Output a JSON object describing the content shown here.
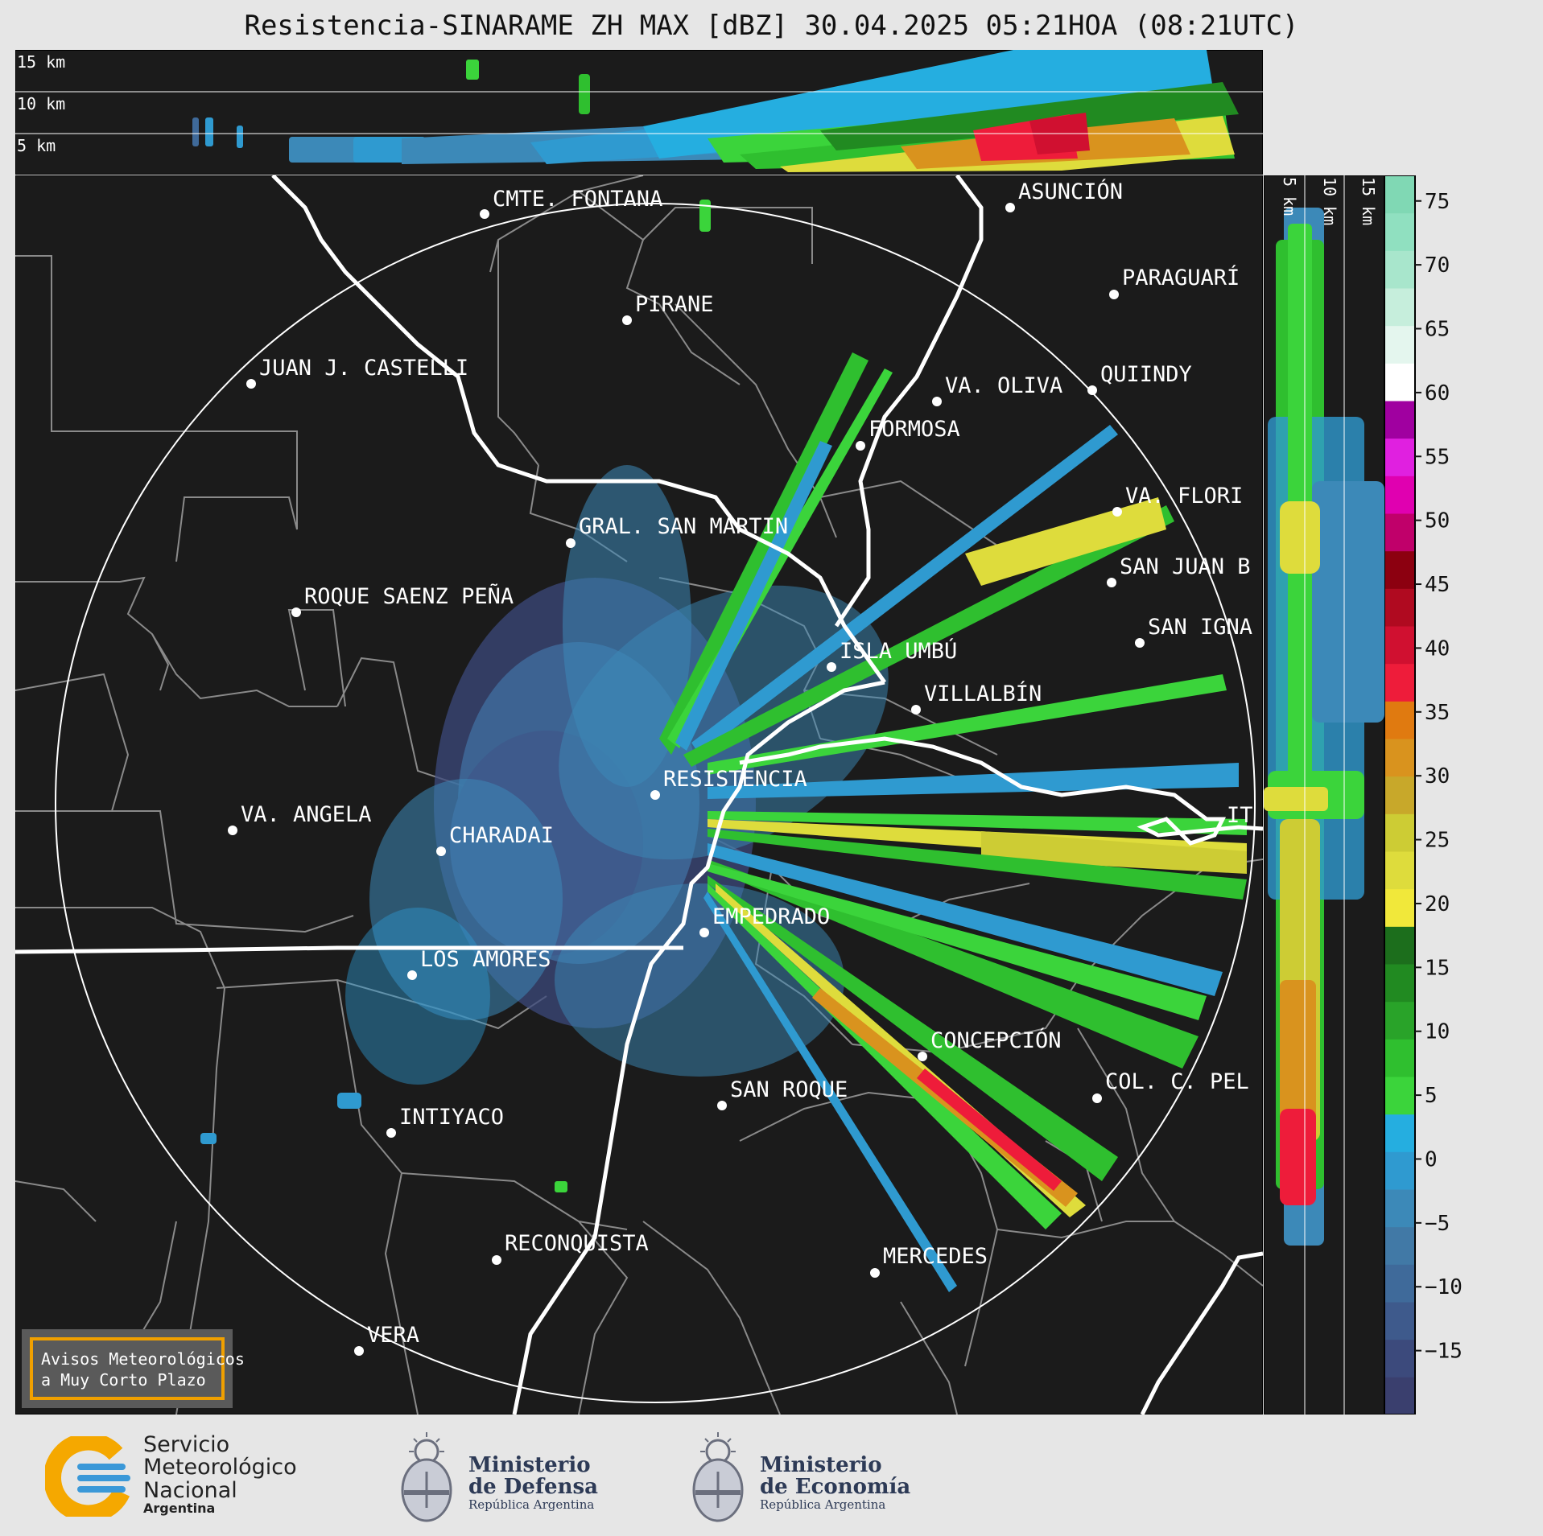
{
  "title": "Resistencia-SINARAME ZH MAX [dBZ] 30.04.2025 05:21HOA (08:21UTC)",
  "top_panel": {
    "height_labels": [
      "15 km",
      "10 km",
      "5 km"
    ]
  },
  "side_panel": {
    "height_labels": [
      "5 km",
      "10 km",
      "15 km"
    ]
  },
  "colorbar": {
    "ticks": [
      "75",
      "70",
      "65",
      "60",
      "55",
      "50",
      "45",
      "40",
      "35",
      "30",
      "25",
      "20",
      "15",
      "10",
      "5",
      "0",
      "−5",
      "−10",
      "−15"
    ],
    "range_dbz": [
      -20,
      77
    ],
    "colors": [
      "#3a3f6e",
      "#3c4a7c",
      "#3e5a8c",
      "#3f6a9a",
      "#4179a6",
      "#3c89b8",
      "#2f9ad0",
      "#25aee0",
      "#3bd43b",
      "#2fbf2f",
      "#29a329",
      "#218a21",
      "#1c6e1c",
      "#f1e83a",
      "#dedc3c",
      "#cdcc34",
      "#c8a82a",
      "#d9931e",
      "#e07a10",
      "#ee1c3a",
      "#d01030",
      "#b00a20",
      "#8c0010",
      "#c0006a",
      "#e000b0",
      "#e020e0",
      "#a000a0",
      "#ffffff",
      "#e4f6ee",
      "#c6eedc",
      "#a8e6cc",
      "#90e0c0",
      "#80d8b4"
    ]
  },
  "map": {
    "cities": [
      {
        "name": "CMTE. FONTANA"
      },
      {
        "name": "ASUNCIÓN"
      },
      {
        "name": "PARAGUARÍ"
      },
      {
        "name": "PIRANE"
      },
      {
        "name": "JUAN J. CASTELLI"
      },
      {
        "name": "VA. OLIVA"
      },
      {
        "name": "QUIINDY"
      },
      {
        "name": "FORMOSA"
      },
      {
        "name": "VA. FLORI"
      },
      {
        "name": "GRAL. SAN MARTIN"
      },
      {
        "name": "SAN JUAN B"
      },
      {
        "name": "ROQUE SAENZ PEÑA"
      },
      {
        "name": "SAN IGNA"
      },
      {
        "name": "ISLA UMBÚ"
      },
      {
        "name": "VILLALBÍN"
      },
      {
        "name": "RESISTENCIA"
      },
      {
        "name": "IT"
      },
      {
        "name": "VA. ANGELA"
      },
      {
        "name": "CHARADAI"
      },
      {
        "name": "EMPEDRADO"
      },
      {
        "name": "LOS AMORES"
      },
      {
        "name": "CONCEPCIÓN"
      },
      {
        "name": "COL. C. PEL"
      },
      {
        "name": "SAN ROQUE"
      },
      {
        "name": "INTIYACO"
      },
      {
        "name": "RECONQUISTA"
      },
      {
        "name": "MERCEDES"
      },
      {
        "name": "VERA"
      }
    ],
    "notice": [
      "Avisos Meteorológicos",
      "a Muy Corto Plazo"
    ],
    "accent_color": "#f0a000"
  },
  "footer": {
    "smn": {
      "line1": "Servicio",
      "line2": "Meteorológico",
      "line3": "Nacional",
      "line4": "Argentina"
    },
    "defensa": {
      "line1": "Ministerio",
      "line2": "de Defensa",
      "line3": "República Argentina"
    },
    "economia": {
      "line1": "Ministerio",
      "line2": "de Economía",
      "line3": "República Argentina"
    }
  }
}
